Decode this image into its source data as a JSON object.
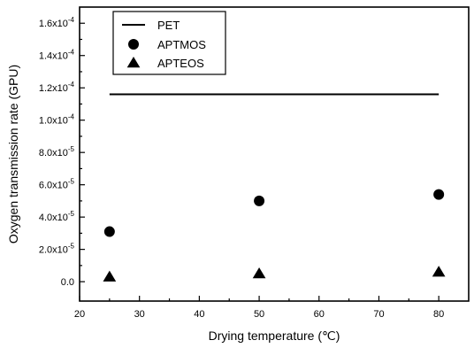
{
  "chart_data": {
    "type": "scatter",
    "xlabel": "Drying temperature (℃)",
    "ylabel": "Oxygen transmission rate (GPU)",
    "xlim": [
      20,
      85
    ],
    "ylim": [
      -1.2e-05,
      0.00017
    ],
    "x_ticks": [
      20,
      30,
      40,
      50,
      60,
      70,
      80
    ],
    "y_ticks": [
      {
        "value": 0.0,
        "mantissa": "0.0",
        "exponent": ""
      },
      {
        "value": 2e-05,
        "mantissa": "2.0x10",
        "exponent": "-5"
      },
      {
        "value": 4e-05,
        "mantissa": "4.0x10",
        "exponent": "-5"
      },
      {
        "value": 6e-05,
        "mantissa": "6.0x10",
        "exponent": "-5"
      },
      {
        "value": 8e-05,
        "mantissa": "8.0x10",
        "exponent": "-5"
      },
      {
        "value": 0.0001,
        "mantissa": "1.0x10",
        "exponent": "-4"
      },
      {
        "value": 0.00012,
        "mantissa": "1.2x10",
        "exponent": "-4"
      },
      {
        "value": 0.00014,
        "mantissa": "1.4x10",
        "exponent": "-4"
      },
      {
        "value": 0.00016,
        "mantissa": "1.6x10",
        "exponent": "-4"
      }
    ],
    "legend_position": "top-left",
    "series": [
      {
        "name": "PET",
        "marker": "line",
        "x": [
          25,
          80
        ],
        "y": [
          0.000116,
          0.000116
        ]
      },
      {
        "name": "APTMOS",
        "marker": "circle",
        "x": [
          25,
          50,
          80
        ],
        "y": [
          3.1e-05,
          5e-05,
          5.4e-05
        ]
      },
      {
        "name": "APTEOS",
        "marker": "triangle",
        "x": [
          25,
          50,
          80
        ],
        "y": [
          3e-06,
          5e-06,
          6e-06
        ]
      }
    ]
  }
}
